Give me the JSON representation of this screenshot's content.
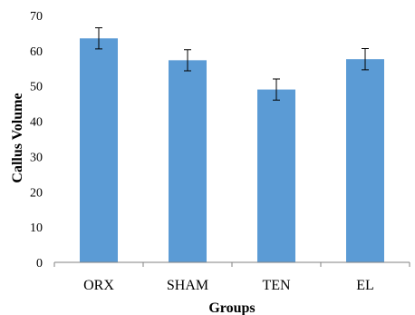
{
  "chart_data": {
    "type": "bar",
    "categories": [
      "ORX",
      "SHAM",
      "TEN",
      "EL"
    ],
    "values": [
      63.5,
      57.3,
      49.0,
      57.6
    ],
    "errors": [
      3.0,
      3.0,
      3.0,
      3.0
    ],
    "xlabel": "Groups",
    "ylabel": "Callus Volume",
    "ylim": [
      0,
      70
    ],
    "yticks": [
      0,
      10,
      20,
      30,
      40,
      50,
      60,
      70
    ],
    "grid": false,
    "bar_color": "#5b9bd5",
    "axis_color": "#808080"
  }
}
